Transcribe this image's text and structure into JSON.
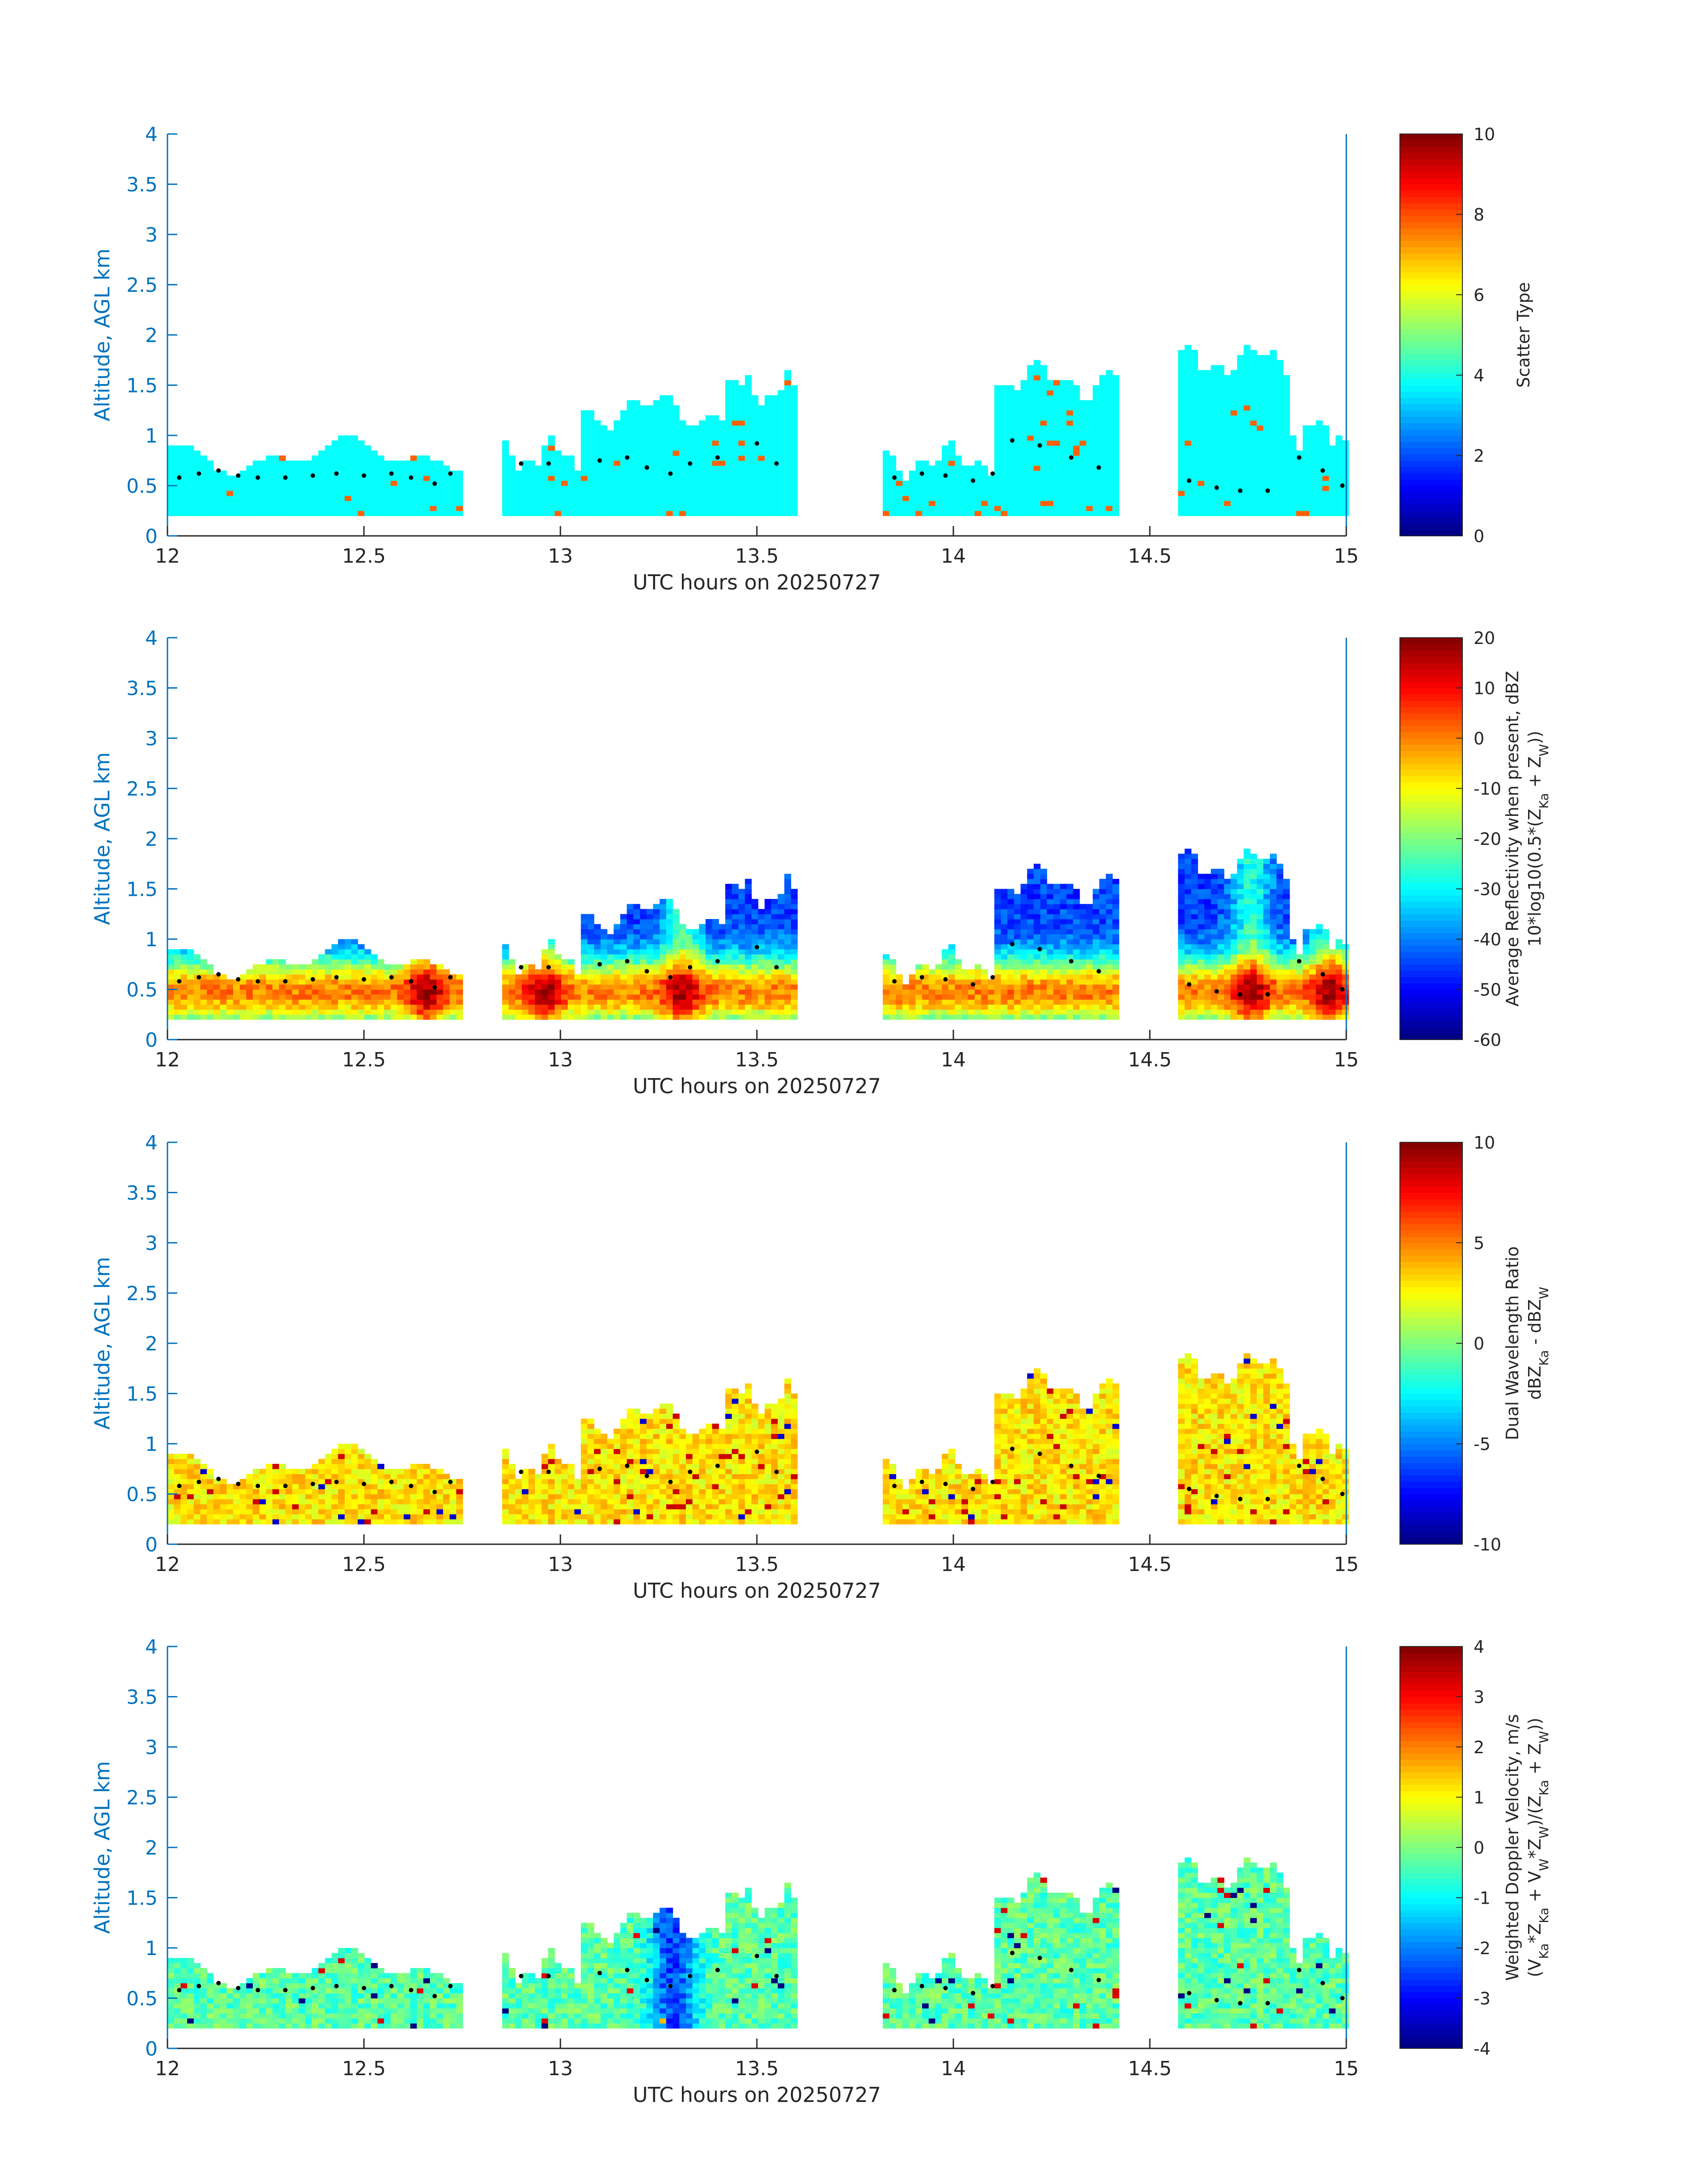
{
  "figure": {
    "date": "20250727"
  },
  "chart_data": [
    {
      "type": "heatmap",
      "xlabel": "UTC hours on 20250727",
      "ylabel": "Altitude, AGL km",
      "xlim": [
        12,
        15
      ],
      "ylim": [
        0,
        4
      ],
      "xticks": [
        "12",
        "12.5",
        "13",
        "13.5",
        "14",
        "14.5",
        "15"
      ],
      "yticks": [
        "0",
        "0.5",
        "1",
        "1.5",
        "2",
        "2.5",
        "3",
        "3.5",
        "4"
      ],
      "colorbar": {
        "min": 0,
        "max": 10,
        "ticks": [
          "0",
          "2",
          "4",
          "6",
          "8",
          "10"
        ],
        "label": "Scatter Type"
      },
      "field": "scatter_type",
      "dominant_value": 3.8,
      "secondary_value": 7.8,
      "black_dots": "cloud-base heights approx 0.45-1.0 km"
    },
    {
      "type": "heatmap",
      "xlabel": "UTC hours on 20250727",
      "ylabel": "Altitude, AGL km",
      "xlim": [
        12,
        15
      ],
      "ylim": [
        0,
        4
      ],
      "xticks": [
        "12",
        "12.5",
        "13",
        "13.5",
        "14",
        "14.5",
        "15"
      ],
      "yticks": [
        "0",
        "0.5",
        "1",
        "1.5",
        "2",
        "2.5",
        "3",
        "3.5",
        "4"
      ],
      "colorbar": {
        "min": -60,
        "max": 20,
        "ticks": [
          "-60",
          "-50",
          "-40",
          "-30",
          "-20",
          "-10",
          "0",
          "10",
          "20"
        ],
        "label_line1": "Average Reflectivity when present, dBZ",
        "label_line2": "10*log10(0.5*(Z",
        "label_sub1": "Ka",
        "label_mid": " + Z",
        "label_sub2": "W",
        "label_end": "))"
      },
      "field": "reflectivity_dBZ",
      "typical_range": [
        -60,
        10
      ]
    },
    {
      "type": "heatmap",
      "xlabel": "UTC hours on 20250727",
      "ylabel": "Altitude, AGL km",
      "xlim": [
        12,
        15
      ],
      "ylim": [
        0,
        4
      ],
      "xticks": [
        "12",
        "12.5",
        "13",
        "13.5",
        "14",
        "14.5",
        "15"
      ],
      "yticks": [
        "0",
        "0.5",
        "1",
        "1.5",
        "2",
        "2.5",
        "3",
        "3.5",
        "4"
      ],
      "colorbar": {
        "min": -10,
        "max": 10,
        "ticks": [
          "-10",
          "-5",
          "0",
          "5",
          "10"
        ],
        "label_line1": "Dual Wavelength Ratio",
        "label_line2": "dBZ",
        "label_sub1": "Ka",
        "label_mid": " - dBZ",
        "label_sub2": "W"
      },
      "field": "dual_wavelength_ratio",
      "typical_range": [
        1,
        7
      ]
    },
    {
      "type": "heatmap",
      "xlabel": "UTC hours on 20250727",
      "ylabel": "Altitude, AGL km",
      "xlim": [
        12,
        15
      ],
      "ylim": [
        0,
        4
      ],
      "xticks": [
        "12",
        "12.5",
        "13",
        "13.5",
        "14",
        "14.5",
        "15"
      ],
      "yticks": [
        "0",
        "0.5",
        "1",
        "1.5",
        "2",
        "2.5",
        "3",
        "3.5",
        "4"
      ],
      "colorbar": {
        "min": -4,
        "max": 4,
        "ticks": [
          "-4",
          "-3",
          "-2",
          "-1",
          "0",
          "1",
          "2",
          "3",
          "4"
        ],
        "label_line1": "Weighted Doppler Velocity, m/s",
        "label_line2": "(V",
        "label_sub1": "Ka",
        "label_mid": "*Z",
        "label_sub2": "Ka",
        "label_mid2": " + V",
        "label_sub3": "W",
        "label_mid3": "*Z",
        "label_sub4": "W",
        "label_mid4": ")/(Z",
        "label_sub5": "Ka",
        "label_mid5": " + Z",
        "label_sub6": "W",
        "label_end": "))"
      },
      "field": "doppler_velocity",
      "typical_range": [
        -3,
        1
      ]
    }
  ],
  "echo_segments": [
    {
      "t0": 12.0,
      "t1": 12.75,
      "hb": 0.2,
      "ht": 0.85
    },
    {
      "t0": 12.85,
      "t1": 13.05,
      "hb": 0.2,
      "ht": 0.85
    },
    {
      "t0": 13.05,
      "t1": 13.42,
      "hb": 0.2,
      "ht": 1.3
    },
    {
      "t0": 13.42,
      "t1": 13.6,
      "hb": 0.2,
      "ht": 1.5
    },
    {
      "t0": 13.82,
      "t1": 14.1,
      "hb": 0.2,
      "ht": 0.8
    },
    {
      "t0": 14.1,
      "t1": 14.42,
      "hb": 0.2,
      "ht": 1.6
    },
    {
      "t0": 14.58,
      "t1": 14.85,
      "hb": 0.2,
      "ht": 1.8
    },
    {
      "t0": 14.85,
      "t1": 15.0,
      "hb": 0.2,
      "ht": 1.1
    }
  ],
  "cloud_base_dots": [
    [
      12.03,
      0.58
    ],
    [
      12.08,
      0.62
    ],
    [
      12.13,
      0.65
    ],
    [
      12.18,
      0.6
    ],
    [
      12.23,
      0.58
    ],
    [
      12.3,
      0.58
    ],
    [
      12.37,
      0.6
    ],
    [
      12.43,
      0.62
    ],
    [
      12.5,
      0.6
    ],
    [
      12.57,
      0.62
    ],
    [
      12.62,
      0.58
    ],
    [
      12.68,
      0.52
    ],
    [
      12.72,
      0.62
    ],
    [
      12.9,
      0.72
    ],
    [
      12.97,
      0.72
    ],
    [
      13.1,
      0.75
    ],
    [
      13.17,
      0.78
    ],
    [
      13.22,
      0.68
    ],
    [
      13.28,
      0.62
    ],
    [
      13.33,
      0.72
    ],
    [
      13.4,
      0.78
    ],
    [
      13.5,
      0.92
    ],
    [
      13.55,
      0.72
    ],
    [
      13.85,
      0.58
    ],
    [
      13.92,
      0.62
    ],
    [
      13.98,
      0.6
    ],
    [
      14.05,
      0.55
    ],
    [
      14.1,
      0.62
    ],
    [
      14.15,
      0.95
    ],
    [
      14.22,
      0.9
    ],
    [
      14.3,
      0.78
    ],
    [
      14.37,
      0.68
    ],
    [
      14.6,
      0.55
    ],
    [
      14.67,
      0.48
    ],
    [
      14.73,
      0.45
    ],
    [
      14.8,
      0.45
    ],
    [
      14.88,
      0.78
    ],
    [
      14.94,
      0.65
    ],
    [
      14.99,
      0.5
    ]
  ]
}
